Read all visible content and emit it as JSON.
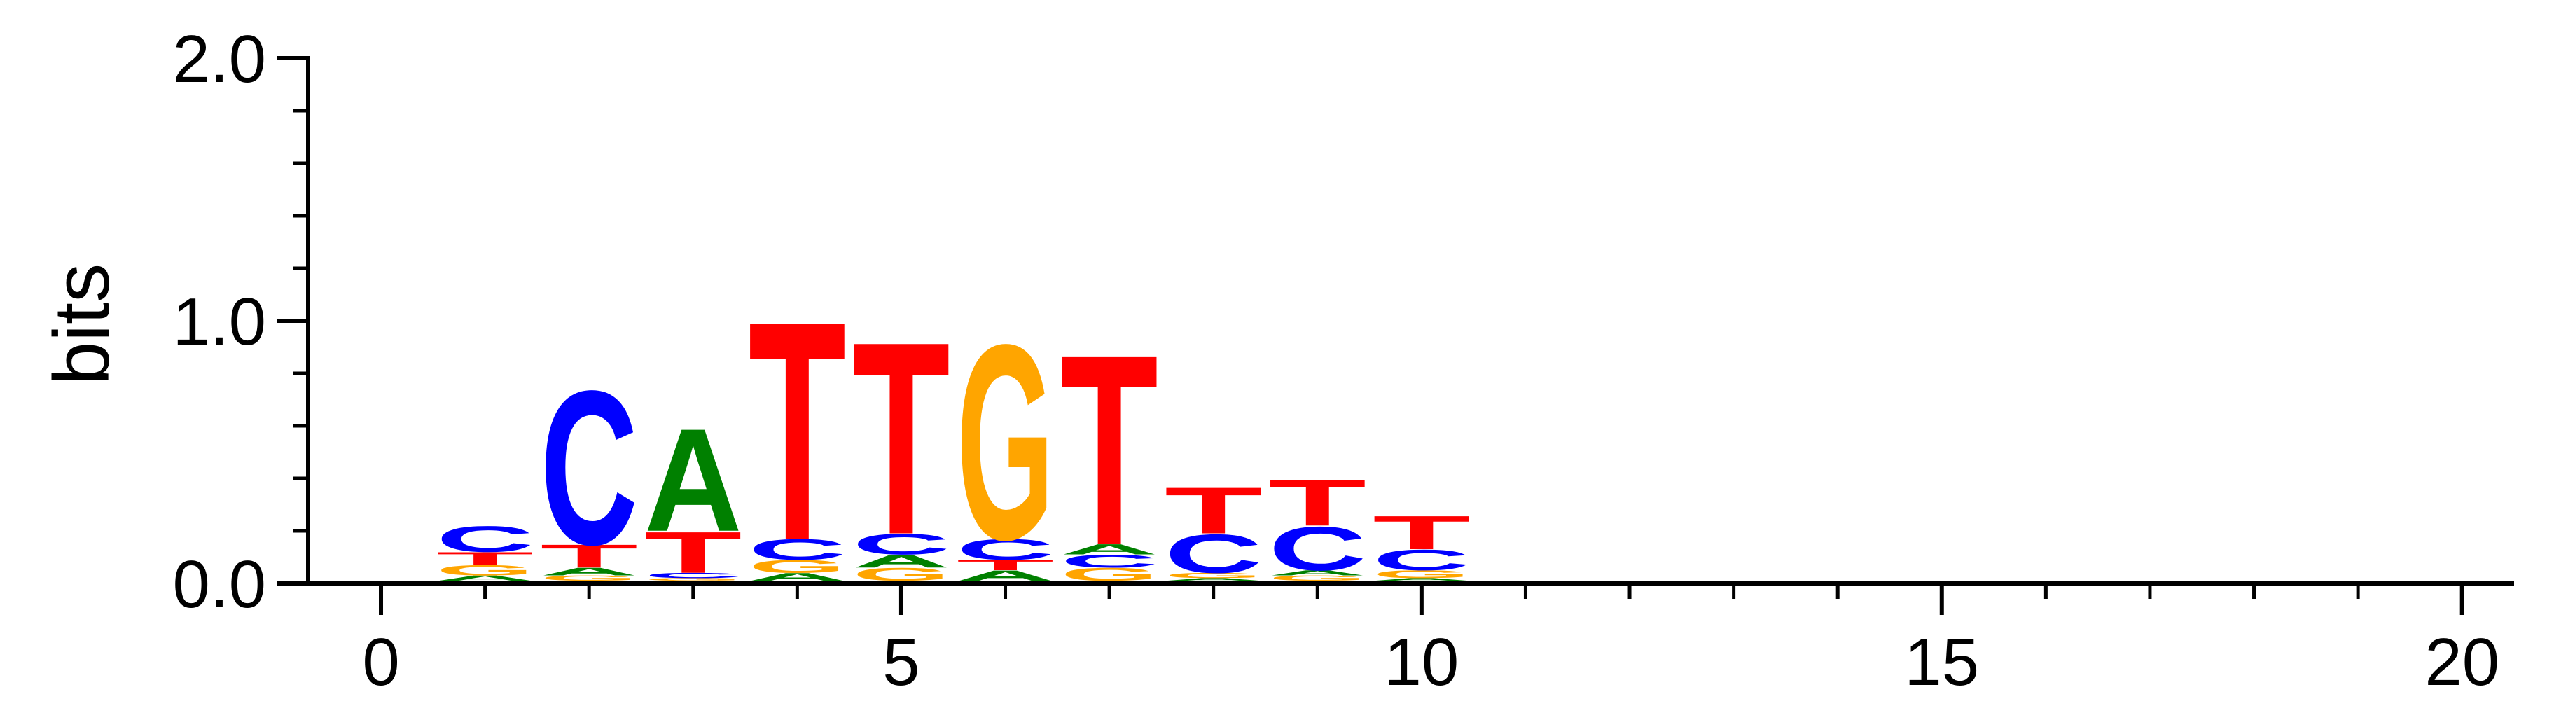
{
  "chart_data": {
    "type": "sequence-logo",
    "title": "",
    "xlabel": "",
    "ylabel": "bits",
    "xlim": [
      -0.7,
      20.5
    ],
    "ylim": [
      0,
      2.0
    ],
    "x_ticks": [
      {
        "value": 0,
        "label": "0"
      },
      {
        "value": 5,
        "label": "5"
      },
      {
        "value": 10,
        "label": "10"
      },
      {
        "value": 15,
        "label": "15"
      },
      {
        "value": 20,
        "label": "20"
      }
    ],
    "y_ticks": [
      {
        "value": 0.0,
        "label": "0.0"
      },
      {
        "value": 1.0,
        "label": "1.0"
      },
      {
        "value": 2.0,
        "label": "2.0"
      }
    ],
    "colors": {
      "A": "#008000",
      "C": "#0000ff",
      "G": "#ffa500",
      "T": "#ff0000"
    },
    "positions": [
      {
        "pos": 1,
        "letters": [
          {
            "base": "A",
            "height": 0.02
          },
          {
            "base": "G",
            "height": 0.04
          },
          {
            "base": "T",
            "height": 0.05
          },
          {
            "base": "C",
            "height": 0.1
          }
        ]
      },
      {
        "pos": 2,
        "letters": [
          {
            "base": "G",
            "height": 0.02
          },
          {
            "base": "A",
            "height": 0.03
          },
          {
            "base": "T",
            "height": 0.09
          },
          {
            "base": "C",
            "height": 0.6
          }
        ]
      },
      {
        "pos": 3,
        "letters": [
          {
            "base": "G",
            "height": 0.01
          },
          {
            "base": "C",
            "height": 0.02
          },
          {
            "base": "T",
            "height": 0.16
          },
          {
            "base": "A",
            "height": 0.4
          }
        ]
      },
      {
        "pos": 4,
        "letters": [
          {
            "base": "A",
            "height": 0.03
          },
          {
            "base": "G",
            "height": 0.05
          },
          {
            "base": "C",
            "height": 0.08
          },
          {
            "base": "T",
            "height": 0.85
          }
        ]
      },
      {
        "pos": 5,
        "letters": [
          {
            "base": "G",
            "height": 0.05
          },
          {
            "base": "A",
            "height": 0.05
          },
          {
            "base": "C",
            "height": 0.08
          },
          {
            "base": "T",
            "height": 0.75
          }
        ]
      },
      {
        "pos": 6,
        "letters": [
          {
            "base": "A",
            "height": 0.04
          },
          {
            "base": "T",
            "height": 0.04
          },
          {
            "base": "C",
            "height": 0.08
          },
          {
            "base": "G",
            "height": 0.76
          }
        ]
      },
      {
        "pos": 7,
        "letters": [
          {
            "base": "G",
            "height": 0.05
          },
          {
            "base": "C",
            "height": 0.05
          },
          {
            "base": "A",
            "height": 0.04
          },
          {
            "base": "T",
            "height": 0.74
          }
        ]
      },
      {
        "pos": 8,
        "letters": [
          {
            "base": "A",
            "height": 0.01
          },
          {
            "base": "G",
            "height": 0.02
          },
          {
            "base": "C",
            "height": 0.15
          },
          {
            "base": "T",
            "height": 0.18
          }
        ]
      },
      {
        "pos": 9,
        "letters": [
          {
            "base": "G",
            "height": 0.02
          },
          {
            "base": "A",
            "height": 0.02
          },
          {
            "base": "C",
            "height": 0.17
          },
          {
            "base": "T",
            "height": 0.18
          }
        ]
      },
      {
        "pos": 10,
        "letters": [
          {
            "base": "A",
            "height": 0.01
          },
          {
            "base": "G",
            "height": 0.03
          },
          {
            "base": "C",
            "height": 0.08
          },
          {
            "base": "T",
            "height": 0.13
          }
        ]
      }
    ]
  }
}
